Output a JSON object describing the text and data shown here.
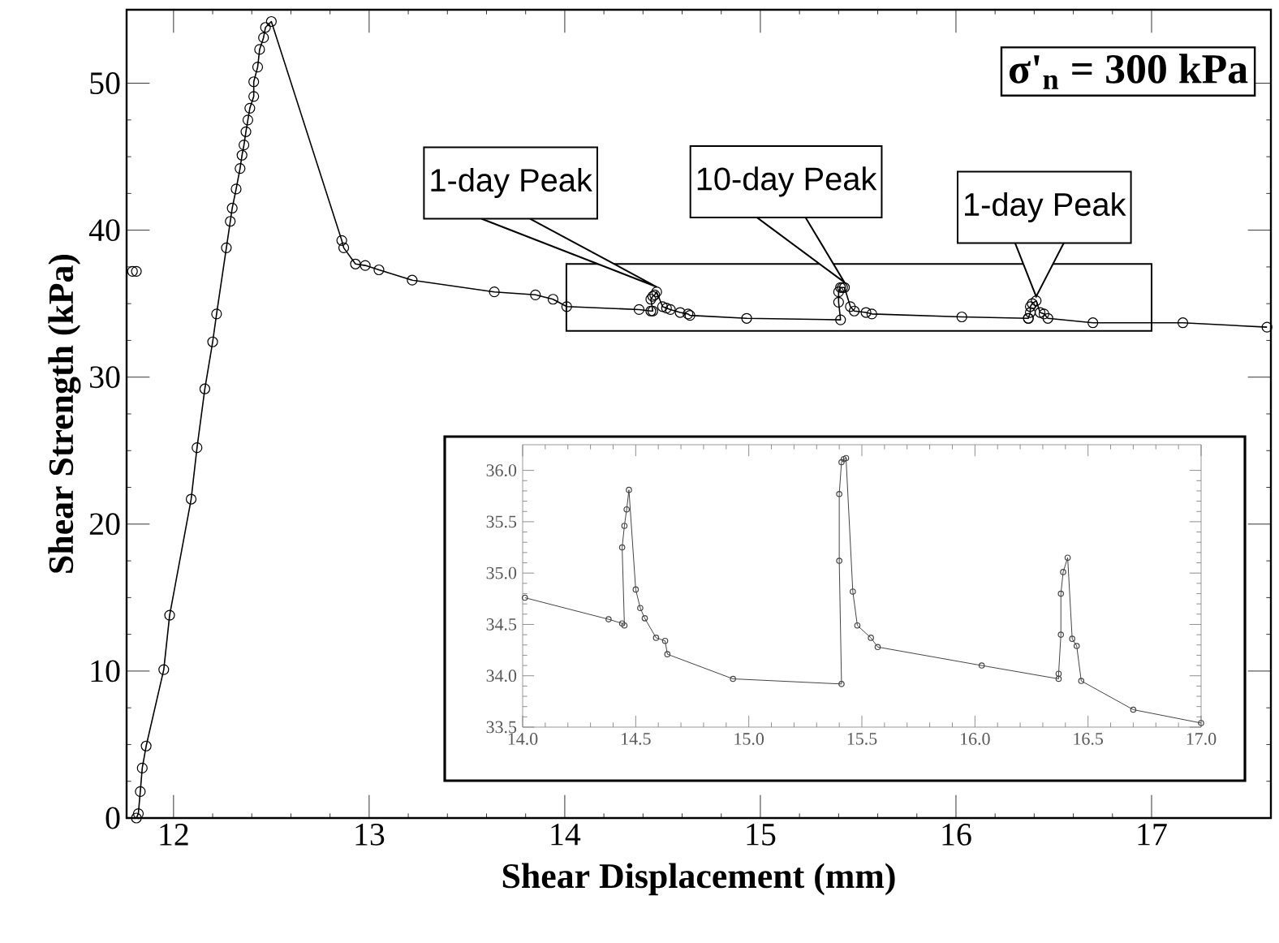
{
  "chart_data": [
    {
      "type": "line",
      "xlabel": "Shear Displacement (mm)",
      "ylabel": "Shear Strength (kPa)",
      "xlim": [
        11.76,
        17.61
      ],
      "ylim": [
        0,
        55
      ],
      "xticks": [
        12,
        13,
        14,
        15,
        16,
        17
      ],
      "yticks": [
        0,
        10,
        20,
        30,
        40,
        50
      ],
      "marker": "circle",
      "grid": false,
      "series": [
        {
          "color": "#000000",
          "x": [
            11.81,
            11.82,
            11.83,
            11.84,
            11.86,
            11.95,
            11.98,
            12.09,
            12.12,
            12.16,
            12.2,
            12.22,
            12.27,
            12.29,
            12.3,
            12.32,
            12.34,
            12.35,
            12.36,
            12.37,
            12.38,
            12.39,
            12.41,
            12.41,
            12.43,
            12.44,
            12.46,
            12.47,
            12.5,
            12.86,
            12.87,
            12.93,
            12.98,
            13.05,
            13.22,
            13.64,
            13.85,
            13.94,
            14.01,
            14.38,
            14.44,
            14.45,
            14.44,
            14.45,
            14.46,
            14.47,
            14.5,
            14.52,
            14.54,
            14.59,
            14.63,
            14.64,
            14.93,
            15.41,
            15.4,
            15.4,
            15.41,
            15.42,
            15.43,
            15.46,
            15.48,
            15.54,
            15.57,
            16.03,
            16.37,
            16.37,
            16.38,
            16.38,
            16.39,
            16.41,
            16.43,
            16.45,
            16.47,
            16.7,
            17.16,
            17.59
          ],
          "values": [
            0,
            0.3,
            1.8,
            3.4,
            4.9,
            10.1,
            13.8,
            21.7,
            25.2,
            29.2,
            32.4,
            34.3,
            38.8,
            40.6,
            41.5,
            42.8,
            44.2,
            45.1,
            45.8,
            46.7,
            47.5,
            48.3,
            49.1,
            50.1,
            51.1,
            52.3,
            53.1,
            53.8,
            54.2,
            39.3,
            38.8,
            37.7,
            37.6,
            37.3,
            36.6,
            35.8,
            35.6,
            35.3,
            34.8,
            34.6,
            34.5,
            34.5,
            35.3,
            35.5,
            35.6,
            35.8,
            34.8,
            34.7,
            34.6,
            34.4,
            34.3,
            34.2,
            34.0,
            33.9,
            35.1,
            35.8,
            36.1,
            36.1,
            36.1,
            34.8,
            34.5,
            34.4,
            34.3,
            34.1,
            34.0,
            34.0,
            34.4,
            34.8,
            35.0,
            35.2,
            34.4,
            34.3,
            34.0,
            33.7,
            33.7,
            33.4
          ]
        },
        {
          "type": "scatter",
          "color": "#000000",
          "x": [
            11.79,
            11.81
          ],
          "values": [
            37.2,
            37.2
          ]
        }
      ],
      "annotations": [
        {
          "text": "1-day Peak",
          "x": 14.47,
          "y": 35.81
        },
        {
          "text": "10-day Peak",
          "x": 15.43,
          "y": 36.12
        },
        {
          "text": "1-day Peak",
          "x": 16.41,
          "y": 35.15
        },
        "**σ'$_{n}$ = 300 kPa**"
      ]
    },
    {
      "type": "line",
      "xlim": [
        14,
        17
      ],
      "ylim": [
        33.5,
        36.25
      ],
      "marker": "circle",
      "xticks": [
        {
          "value": 14,
          "label": "14.0"
        },
        14.5,
        {
          "value": 15,
          "label": "15.0"
        },
        15.5,
        {
          "value": 16,
          "label": "16.0"
        },
        16.5,
        {
          "value": 17,
          "label": "17.0"
        }
      ],
      "yticks": [
        33.5,
        {
          "value": 34,
          "label": "34.0"
        },
        34.5,
        {
          "value": 35,
          "label": "35.0"
        },
        35.5,
        {
          "value": 36,
          "label": "36.0"
        }
      ],
      "series": [
        {
          "color": "#444444",
          "x": [
            14.01,
            14.38,
            14.44,
            14.45,
            14.44,
            14.45,
            14.46,
            14.47,
            14.5,
            14.52,
            14.54,
            14.59,
            14.63,
            14.64,
            14.93,
            15.41,
            15.4,
            15.4,
            15.41,
            15.42,
            15.43,
            15.46,
            15.48,
            15.54,
            15.57,
            16.03,
            16.37,
            16.37,
            16.38,
            16.38,
            16.39,
            16.41,
            16.43,
            16.45,
            16.47,
            16.7,
            17.0
          ],
          "values": [
            34.76,
            34.55,
            34.51,
            34.49,
            35.25,
            35.46,
            35.62,
            35.81,
            34.84,
            34.66,
            34.56,
            34.37,
            34.34,
            34.21,
            33.97,
            33.92,
            35.12,
            35.77,
            36.08,
            36.11,
            36.12,
            34.82,
            34.49,
            34.37,
            34.28,
            34.1,
            33.97,
            34.02,
            34.4,
            34.8,
            35.01,
            35.15,
            34.36,
            34.29,
            33.95,
            33.67,
            33.54
          ]
        }
      ]
    }
  ]
}
